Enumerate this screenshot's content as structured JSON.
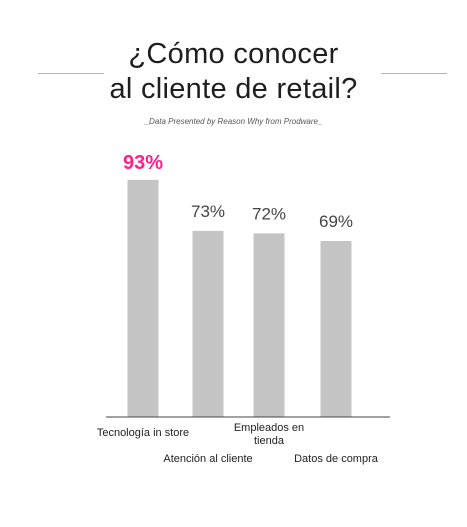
{
  "title": {
    "line1": "¿Cómo conocer",
    "line2": "al cliente de retail?"
  },
  "subtitle": "_Data Presented by Reason Why from Prodware_",
  "colors": {
    "bar": "#c4c4c4",
    "highlight": "#ff1f8e",
    "accent": "#7fc7e5",
    "axis": "#444444"
  },
  "chart_data": {
    "type": "bar",
    "title": "¿Cómo conocer al cliente de retail?",
    "subtitle": "_Data Presented by Reason Why from Prodware_",
    "categories": [
      "Tecnología in store",
      "Atención al cliente",
      "Empleados en tienda",
      "Datos de compra"
    ],
    "category_lines": [
      [
        "Tecnología in store"
      ],
      [
        "Atención al cliente"
      ],
      [
        "Empleados en",
        "tienda"
      ],
      [
        "Datos de compra"
      ]
    ],
    "values": [
      93,
      73,
      72,
      69
    ],
    "value_labels": [
      "93%",
      "73%",
      "72%",
      "69%"
    ],
    "highlight_index": 0,
    "ylim": [
      0,
      100
    ],
    "grid": false,
    "legend": "none"
  }
}
